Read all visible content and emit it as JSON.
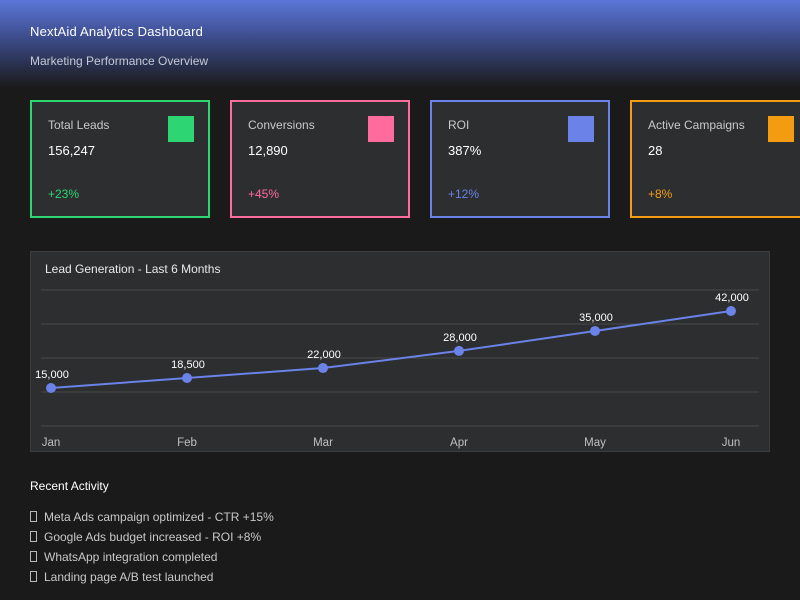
{
  "header": {
    "title": "NextAid Analytics Dashboard",
    "subtitle": "Marketing Performance Overview"
  },
  "cards": [
    {
      "label": "Total Leads",
      "value": "156,247",
      "delta": "+23%",
      "color": "#2ed573"
    },
    {
      "label": "Conversions",
      "value": "12,890",
      "delta": "+45%",
      "color": "#ff6b9c"
    },
    {
      "label": "ROI",
      "value": "387%",
      "delta": "+12%",
      "color": "#6b82e8"
    },
    {
      "label": "Active Campaigns",
      "value": "28",
      "delta": "+8%",
      "color": "#f39c12"
    }
  ],
  "chart_data": {
    "type": "line",
    "title": "Lead Generation - Last 6 Months",
    "categories": [
      "Jan",
      "Feb",
      "Mar",
      "Apr",
      "May",
      "Jun"
    ],
    "values": [
      15000,
      18500,
      22000,
      28000,
      35000,
      42000
    ],
    "point_labels": [
      "15,000",
      "18,500",
      "22,000",
      "28,000",
      "35,000",
      "42,000"
    ],
    "xlabel": "",
    "ylabel": "",
    "ylim": [
      15000,
      42000
    ],
    "grid": true,
    "legend": false,
    "line_color": "#6b82e8",
    "grid_color": "#474a4b",
    "point_label_color": "#ffffff",
    "axis_label_color": "#c0c0c0"
  },
  "activity": {
    "heading": "Recent Activity",
    "items": [
      "Meta Ads campaign optimized - CTR +15%",
      "Google Ads budget increased - ROI +8%",
      "WhatsApp integration completed",
      "Landing page A/B test launched"
    ]
  }
}
